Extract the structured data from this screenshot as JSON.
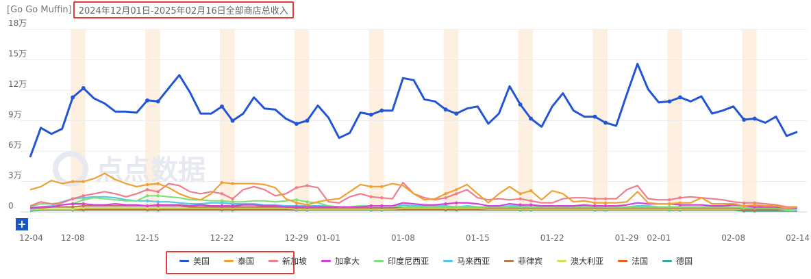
{
  "header": {
    "app": "[Go Go Muffin]",
    "range_title": "2024年12月01日-2025年02月16日全部商店总收入"
  },
  "zoom_button": "+",
  "watermark": "点点数据",
  "colors": {
    "美国": "#2255d6",
    "泰国": "#f0a030",
    "新加坡": "#f07b8a",
    "加拿大": "#d83ed8",
    "印度尼西亚": "#7ee07a",
    "马来西亚": "#54c8e8",
    "菲律宾": "#b87a50",
    "澳大利亚": "#c9e85a",
    "法国": "#f05a1e",
    "德国": "#3aaa98"
  },
  "chart_data": {
    "type": "line",
    "ylim": [
      0,
      180000
    ],
    "yticks": [
      0,
      30000,
      60000,
      90000,
      120000,
      150000,
      180000
    ],
    "ytick_labels": [
      "0",
      "3万",
      "6万",
      "9万",
      "12万",
      "15万",
      "18万"
    ],
    "x_range": [
      "2024-12-04",
      "2025-02-14"
    ],
    "xtick_labels": [
      "12-04",
      "12-08",
      "12-15",
      "12-22",
      "12-29",
      "01-01",
      "01-08",
      "01-15",
      "01-22",
      "01-29",
      "02-01",
      "02-08",
      "02-14"
    ],
    "xtick_days": [
      0,
      4,
      11,
      18,
      25,
      28,
      35,
      42,
      49,
      56,
      59,
      66,
      72
    ],
    "weekend_day_pairs": [
      [
        4,
        5
      ],
      [
        11,
        12
      ],
      [
        18,
        19
      ],
      [
        25,
        26
      ],
      [
        32,
        33
      ],
      [
        39,
        40
      ],
      [
        46,
        47
      ],
      [
        53,
        54
      ],
      [
        60,
        61
      ],
      [
        67,
        68
      ]
    ],
    "series": [
      {
        "name": "美国",
        "values": [
          54000,
          83000,
          77000,
          82000,
          113000,
          122000,
          112000,
          107000,
          99000,
          99000,
          98000,
          110000,
          109000,
          122000,
          135000,
          118000,
          97000,
          97000,
          104000,
          90000,
          97000,
          113000,
          102000,
          101000,
          92000,
          87000,
          90000,
          105000,
          93000,
          73000,
          78000,
          98000,
          96000,
          100000,
          100000,
          132000,
          130000,
          111000,
          109000,
          101000,
          97000,
          102000,
          104000,
          87000,
          97000,
          124000,
          106000,
          92000,
          84000,
          104000,
          117000,
          100000,
          94000,
          94000,
          88000,
          85000,
          116000,
          146000,
          121000,
          108000,
          109000,
          113000,
          109000,
          114000,
          97000,
          100000,
          104000,
          91000,
          92000,
          88000,
          94000,
          75000,
          79000
        ]
      },
      {
        "name": "泰国",
        "values": [
          22000,
          25000,
          31000,
          28000,
          30000,
          30000,
          33000,
          38000,
          32000,
          28000,
          25000,
          27000,
          28000,
          24000,
          18000,
          14000,
          12000,
          18000,
          29000,
          28000,
          28000,
          28000,
          27000,
          24000,
          13000,
          9000,
          7000,
          10000,
          12000,
          13000,
          20000,
          27000,
          25000,
          25000,
          28000,
          26000,
          18000,
          12000,
          13000,
          18000,
          22000,
          27000,
          18000,
          9000,
          18000,
          25000,
          18000,
          21000,
          12000,
          21000,
          18000,
          10000,
          11000,
          9000,
          9000,
          9000,
          10000,
          20000,
          9000,
          8000,
          8000,
          9000,
          9000,
          14000,
          8000,
          8000,
          8000,
          6000,
          7000,
          6000,
          6000,
          4000,
          5000
        ]
      },
      {
        "name": "新加坡",
        "values": [
          6000,
          10000,
          8000,
          9000,
          13000,
          16000,
          18000,
          20000,
          18000,
          15000,
          18000,
          22000,
          20000,
          28000,
          26000,
          20000,
          18000,
          20000,
          18000,
          13000,
          22000,
          25000,
          22000,
          16000,
          18000,
          24000,
          26000,
          24000,
          10000,
          9000,
          15000,
          18000,
          15000,
          14000,
          13000,
          29000,
          18000,
          14000,
          12000,
          14000,
          18000,
          22000,
          14000,
          12000,
          13000,
          12000,
          13000,
          11000,
          9000,
          9000,
          13000,
          14000,
          14000,
          13000,
          13000,
          13000,
          22000,
          26000,
          13000,
          12000,
          12000,
          14000,
          15000,
          14000,
          13000,
          12000,
          10000,
          9000,
          9000,
          8000,
          7000,
          5000,
          5000
        ]
      },
      {
        "name": "加拿大",
        "values": [
          4000,
          5000,
          5000,
          7000,
          8000,
          8000,
          7000,
          7000,
          8000,
          7000,
          7000,
          6000,
          7000,
          7000,
          7000,
          6000,
          7000,
          6000,
          6000,
          6000,
          7000,
          7000,
          6000,
          6000,
          5000,
          5000,
          5000,
          5000,
          5000,
          5000,
          5000,
          5000,
          6000,
          6000,
          6000,
          9000,
          8000,
          7000,
          7000,
          8000,
          9000,
          9000,
          8000,
          6000,
          6000,
          8000,
          7000,
          7000,
          6000,
          6000,
          6000,
          6000,
          7000,
          6000,
          6000,
          6000,
          7000,
          9000,
          8000,
          8000,
          8000,
          7000,
          7000,
          7000,
          6000,
          6000,
          7000,
          6000,
          5000,
          5000,
          5000,
          4000,
          4000
        ]
      },
      {
        "name": "印度尼西亚",
        "values": [
          5000,
          8000,
          8000,
          7000,
          8000,
          12000,
          14000,
          13000,
          12000,
          11000,
          11000,
          16000,
          16000,
          15000,
          14000,
          12000,
          12000,
          11000,
          11000,
          10000,
          10000,
          11000,
          11000,
          10000,
          11000,
          12000,
          10000,
          9000,
          6000,
          5000,
          5000,
          6000,
          6000,
          6000,
          6000,
          5000,
          5000,
          5000,
          5000,
          5000,
          5000,
          5000,
          5000,
          5000,
          5000,
          5000,
          5000,
          5000,
          5000,
          5000,
          5000,
          5000,
          5000,
          5000,
          5000,
          5000,
          5000,
          5000,
          5000,
          5000,
          5000,
          5000,
          5000,
          5000,
          5000,
          5000,
          5000,
          4000,
          4000,
          4000,
          4000,
          3000,
          3000
        ]
      },
      {
        "name": "马来西亚",
        "values": [
          3000,
          5000,
          6000,
          10000,
          13000,
          14000,
          15000,
          15000,
          14000,
          12000,
          11000,
          11000,
          10000,
          10000,
          9000,
          8000,
          8000,
          9000,
          9000,
          8000,
          8000,
          8000,
          7000,
          7000,
          6000,
          6000,
          6000,
          6000,
          6000,
          5000,
          5000,
          6000,
          6000,
          6000,
          6000,
          7000,
          6000,
          6000,
          6000,
          6000,
          5000,
          6000,
          5000,
          5000,
          5000,
          6000,
          6000,
          5000,
          5000,
          5000,
          6000,
          6000,
          6000,
          6000,
          5000,
          5000,
          5000,
          6000,
          6000,
          5000,
          5000,
          5000,
          5000,
          5000,
          5000,
          5000,
          5000,
          4000,
          4000,
          4000,
          4000,
          3000,
          3000
        ]
      },
      {
        "name": "菲律宾",
        "values": [
          3000,
          4000,
          5000,
          5000,
          5000,
          6000,
          6000,
          6000,
          6000,
          6000,
          6000,
          6000,
          6000,
          6000,
          6000,
          5000,
          5000,
          5000,
          5000,
          5000,
          5000,
          5000,
          5000,
          5000,
          5000,
          4000,
          4000,
          4000,
          4000,
          4000,
          4000,
          4000,
          4000,
          4000,
          4000,
          5000,
          5000,
          5000,
          5000,
          5000,
          5000,
          5000,
          5000,
          4000,
          4000,
          4000,
          4000,
          4000,
          4000,
          4000,
          4000,
          4000,
          4000,
          4000,
          4000,
          4000,
          4000,
          4000,
          4000,
          4000,
          4000,
          4000,
          4000,
          4000,
          4000,
          4000,
          4000,
          3000,
          3000,
          3000,
          3000,
          3000,
          3000
        ]
      },
      {
        "name": "澳大利亚",
        "values": [
          2000,
          3000,
          3000,
          3000,
          3000,
          4000,
          4000,
          4000,
          4000,
          4000,
          4000,
          4000,
          4000,
          4000,
          4000,
          4000,
          4000,
          4000,
          4000,
          4000,
          4000,
          4000,
          4000,
          4000,
          4000,
          3000,
          3000,
          3000,
          3000,
          3000,
          3000,
          3000,
          3000,
          3000,
          3000,
          4000,
          4000,
          4000,
          4000,
          4000,
          4000,
          4000,
          4000,
          3000,
          3000,
          3000,
          3000,
          3000,
          3000,
          3000,
          3000,
          3000,
          3000,
          3000,
          3000,
          3000,
          3000,
          3000,
          3000,
          3000,
          3000,
          3000,
          3000,
          3000,
          3000,
          3000,
          3000,
          3000,
          3000,
          3000,
          3000,
          2000,
          2000
        ]
      },
      {
        "name": "法国",
        "values": [
          2000,
          3000,
          3000,
          3000,
          3000,
          3000,
          3000,
          3000,
          3000,
          3000,
          3000,
          3000,
          3000,
          3000,
          3000,
          3000,
          3000,
          3000,
          3000,
          3000,
          3000,
          3000,
          3000,
          3000,
          3000,
          3000,
          3000,
          3000,
          3000,
          3000,
          3000,
          3000,
          3000,
          3000,
          3000,
          3000,
          3000,
          3000,
          3000,
          3000,
          3000,
          3000,
          3000,
          3000,
          3000,
          3000,
          3000,
          3000,
          3000,
          3000,
          3000,
          3000,
          3000,
          3000,
          3000,
          3000,
          3000,
          3000,
          3000,
          3000,
          3000,
          3000,
          3000,
          3000,
          3000,
          3000,
          3000,
          2000,
          2000,
          2000,
          2000,
          2000,
          2000
        ]
      },
      {
        "name": "德国",
        "values": [
          1000,
          2000,
          2000,
          2000,
          2000,
          2000,
          2000,
          2000,
          2000,
          2000,
          2000,
          2000,
          2000,
          2000,
          2000,
          2000,
          2000,
          2000,
          2000,
          2000,
          2000,
          2000,
          2000,
          2000,
          2000,
          2000,
          2000,
          2000,
          2000,
          2000,
          2000,
          2000,
          2000,
          2000,
          2000,
          2000,
          2000,
          2000,
          2000,
          2000,
          2000,
          2000,
          2000,
          2000,
          2000,
          2000,
          2000,
          2000,
          2000,
          2000,
          2000,
          2000,
          2000,
          2000,
          2000,
          2000,
          2000,
          2000,
          2000,
          2000,
          2000,
          2000,
          2000,
          2000,
          2000,
          2000,
          2000,
          1000,
          1000,
          1000,
          1000,
          1000,
          1000
        ]
      }
    ]
  },
  "legend": [
    "美国",
    "泰国",
    "新加坡",
    "加拿大",
    "印度尼西亚",
    "马来西亚",
    "菲律宾",
    "澳大利亚",
    "法国",
    "德国"
  ]
}
